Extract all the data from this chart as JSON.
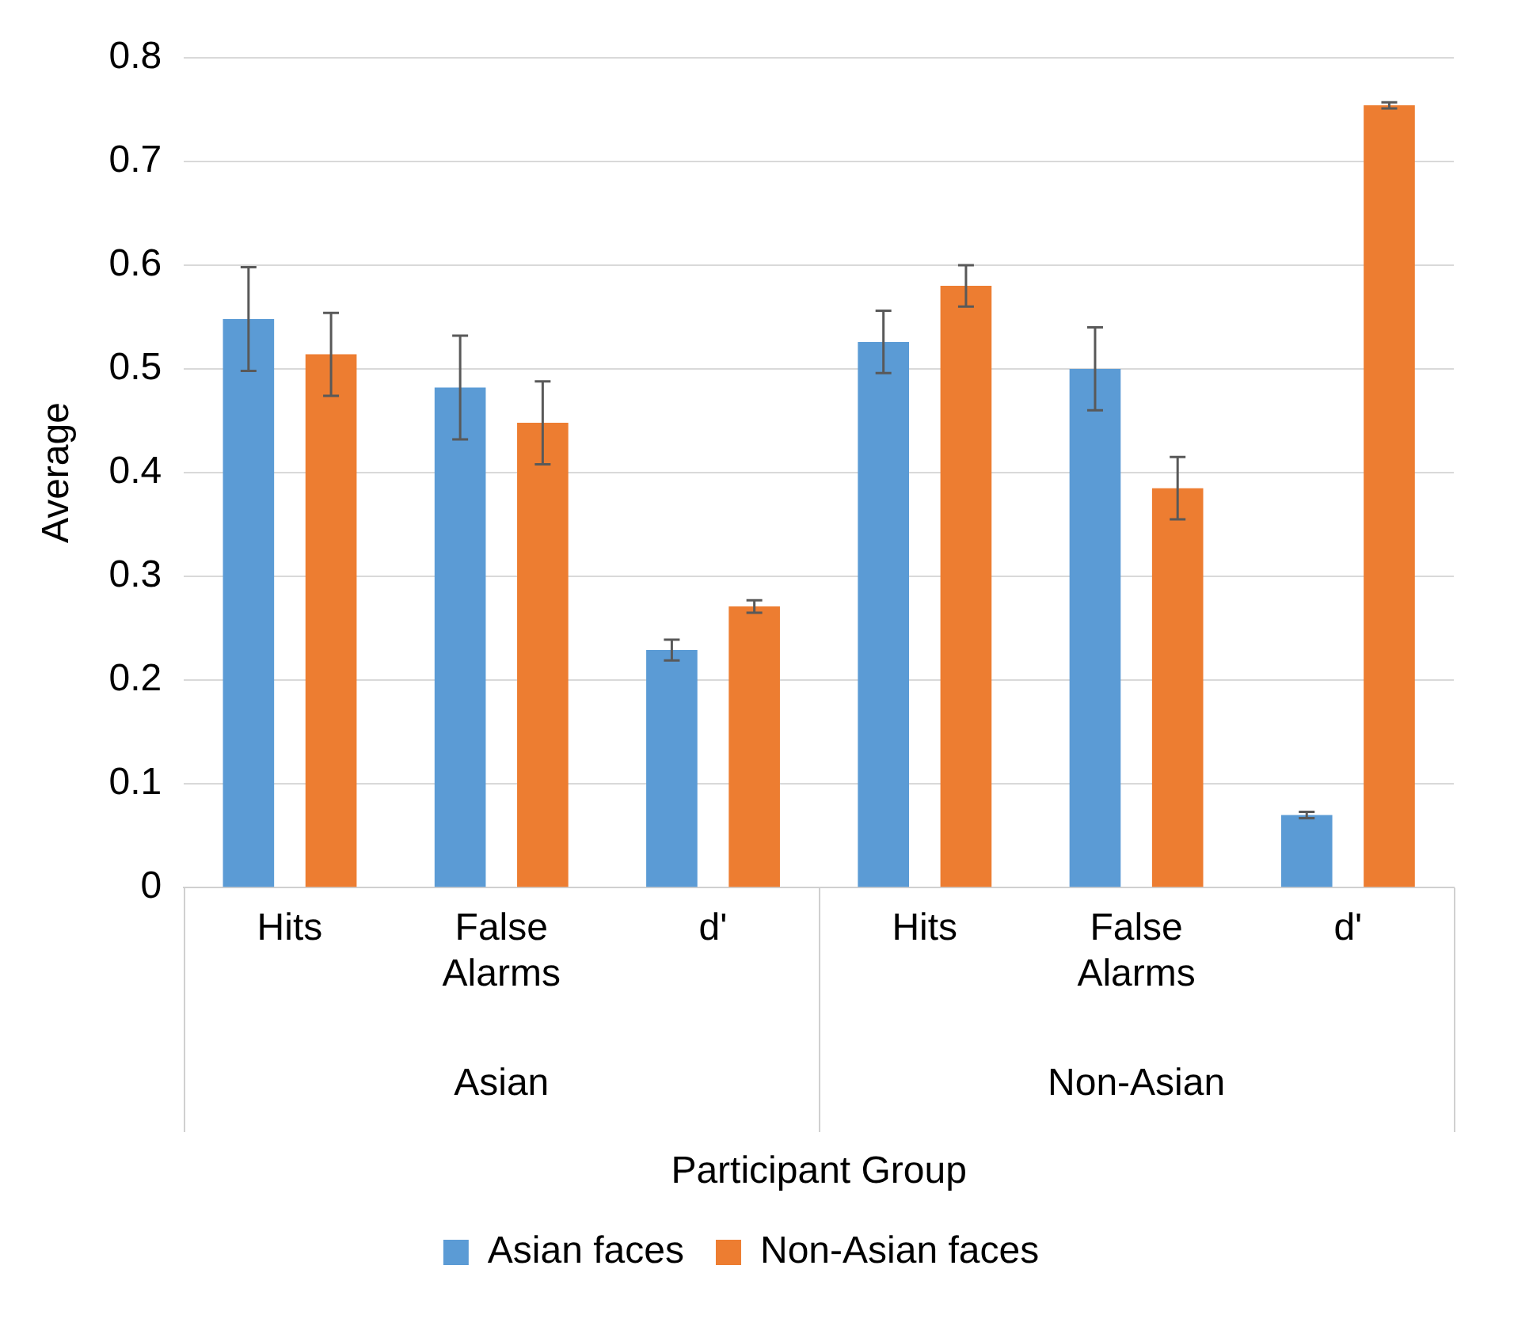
{
  "chart_data": {
    "type": "bar",
    "xlabel": "Participant Group",
    "ylabel": "Average",
    "categories": [
      "Hits",
      "False Alarms",
      "d'",
      "Hits",
      "False Alarms",
      "d'"
    ],
    "series": [
      {
        "name": "Asian faces",
        "color": "#5b9bd5",
        "values": [
          0.548,
          0.482,
          0.229,
          0.526,
          0.5,
          0.07
        ],
        "errors": [
          0.05,
          0.05,
          0.01,
          0.03,
          0.04,
          0.003
        ]
      },
      {
        "name": "Non-Asian faces",
        "color": "#ed7d31",
        "values": [
          0.514,
          0.448,
          0.271,
          0.58,
          0.385,
          0.754
        ],
        "errors": [
          0.04,
          0.04,
          0.006,
          0.02,
          0.03,
          0.003
        ]
      }
    ],
    "annotations": [
      "Asian",
      "Non-Asian"
    ],
    "ylim": [
      0,
      0.8
    ],
    "yticks": [
      0,
      0.1,
      0.2,
      0.3,
      0.4,
      0.5,
      0.6,
      0.7,
      0.8
    ],
    "grid": "y",
    "legend": "bottom"
  }
}
